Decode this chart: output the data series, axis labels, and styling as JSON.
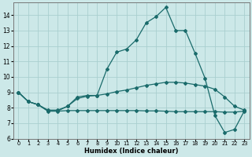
{
  "xlabel": "Humidex (Indice chaleur)",
  "ylabel": "",
  "xlim": [
    -0.5,
    23.5
  ],
  "ylim": [
    6,
    14.8
  ],
  "yticks": [
    6,
    7,
    8,
    9,
    10,
    11,
    12,
    13,
    14
  ],
  "xticks": [
    0,
    1,
    2,
    3,
    4,
    5,
    6,
    7,
    8,
    9,
    10,
    11,
    12,
    13,
    14,
    15,
    16,
    17,
    18,
    19,
    20,
    21,
    22,
    23
  ],
  "bg_color": "#cce8e8",
  "line_color": "#1a6b6b",
  "grid_color": "#aacfcf",
  "line1_y": [
    9.0,
    8.4,
    8.2,
    7.8,
    7.8,
    8.1,
    8.7,
    8.8,
    8.8,
    10.5,
    11.6,
    11.8,
    12.4,
    13.5,
    13.9,
    14.5,
    13.0,
    13.0,
    11.5,
    9.9,
    7.5,
    6.4,
    6.6,
    7.8
  ],
  "line2_y": [
    9.0,
    8.4,
    8.2,
    7.85,
    7.85,
    8.1,
    8.6,
    8.75,
    8.8,
    8.9,
    9.05,
    9.15,
    9.3,
    9.45,
    9.55,
    9.65,
    9.65,
    9.6,
    9.5,
    9.4,
    9.2,
    8.7,
    8.1,
    7.85
  ],
  "line3_y": [
    9.0,
    8.4,
    8.2,
    7.78,
    7.78,
    7.82,
    7.82,
    7.82,
    7.82,
    7.82,
    7.82,
    7.82,
    7.82,
    7.8,
    7.8,
    7.78,
    7.75,
    7.75,
    7.75,
    7.75,
    7.75,
    7.72,
    7.72,
    7.78
  ]
}
